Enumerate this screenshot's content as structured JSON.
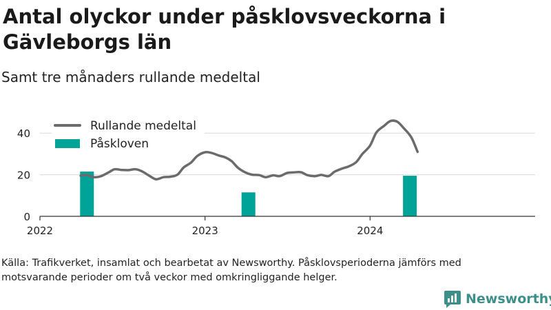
{
  "title": "Antal olyckor under påsklovsveckorna i Gävleborgs län",
  "subtitle": "Samt tre månaders rullande medeltal",
  "source": "Källa: Trafikverket, insamlat och bearbetat av Newsworthy. Påsklovsperioderna jämförs med motsvarande perioder om två veckor med omkringliggande helger.",
  "brand": {
    "name": "Newsworthy",
    "icon": "newsworthy-logo-icon"
  },
  "colors": {
    "line": "#6b6b6b",
    "bar": "#00a398",
    "axis": "#333333",
    "grid": "#d9d9d9",
    "brand": "#3d8f8a"
  },
  "chart_data": {
    "type": "bar+line",
    "title": "Antal olyckor under påsklovsveckorna i Gävleborgs län",
    "subtitle": "Samt tre månaders rullande medeltal",
    "x_ticks": [
      "2022",
      "2023",
      "2024"
    ],
    "x_range": [
      "2022-01-01",
      "2024-12-31"
    ],
    "y_ticks": [
      0,
      20,
      40
    ],
    "ylim": [
      0,
      50
    ],
    "grid": "horizontal",
    "legend_position": "top-left",
    "series": [
      {
        "name": "Rullande medeltal",
        "type": "line",
        "points": [
          [
            "2022-04-01",
            19.5
          ],
          [
            "2022-04-15",
            19.8
          ],
          [
            "2022-05-01",
            18.8
          ],
          [
            "2022-05-15",
            19.2
          ],
          [
            "2022-06-01",
            21.0
          ],
          [
            "2022-06-15",
            22.6
          ],
          [
            "2022-07-01",
            22.3
          ],
          [
            "2022-07-15",
            22.2
          ],
          [
            "2022-08-01",
            22.6
          ],
          [
            "2022-08-15",
            21.6
          ],
          [
            "2022-09-01",
            19.3
          ],
          [
            "2022-09-15",
            17.8
          ],
          [
            "2022-10-01",
            18.8
          ],
          [
            "2022-10-15",
            19.0
          ],
          [
            "2022-11-01",
            20.0
          ],
          [
            "2022-11-15",
            23.5
          ],
          [
            "2022-12-01",
            25.8
          ],
          [
            "2022-12-15",
            29.0
          ],
          [
            "2023-01-01",
            30.8
          ],
          [
            "2023-01-15",
            30.5
          ],
          [
            "2023-02-01",
            29.2
          ],
          [
            "2023-02-15",
            28.3
          ],
          [
            "2023-03-01",
            26.5
          ],
          [
            "2023-03-15",
            23.3
          ],
          [
            "2023-04-01",
            21.0
          ],
          [
            "2023-04-15",
            20.0
          ],
          [
            "2023-05-01",
            19.8
          ],
          [
            "2023-05-15",
            18.8
          ],
          [
            "2023-06-01",
            19.7
          ],
          [
            "2023-06-15",
            19.3
          ],
          [
            "2023-07-01",
            20.8
          ],
          [
            "2023-07-15",
            21.1
          ],
          [
            "2023-08-01",
            21.2
          ],
          [
            "2023-08-15",
            19.8
          ],
          [
            "2023-09-01",
            19.3
          ],
          [
            "2023-09-15",
            19.9
          ],
          [
            "2023-10-01",
            19.3
          ],
          [
            "2023-10-15",
            21.5
          ],
          [
            "2023-11-01",
            23.0
          ],
          [
            "2023-11-15",
            24.0
          ],
          [
            "2023-12-01",
            26.0
          ],
          [
            "2023-12-15",
            30.0
          ],
          [
            "2024-01-01",
            34.0
          ],
          [
            "2024-01-15",
            40.3
          ],
          [
            "2024-02-01",
            43.5
          ],
          [
            "2024-02-15",
            45.8
          ],
          [
            "2024-03-01",
            45.5
          ],
          [
            "2024-03-15",
            42.5
          ],
          [
            "2024-04-01",
            38.0
          ],
          [
            "2024-04-15",
            31.0
          ]
        ]
      },
      {
        "name": "Påskloven",
        "type": "bar",
        "points": [
          [
            "2022-04-15",
            21.5
          ],
          [
            "2023-04-07",
            11.5
          ],
          [
            "2024-03-29",
            19.5
          ]
        ]
      }
    ]
  }
}
